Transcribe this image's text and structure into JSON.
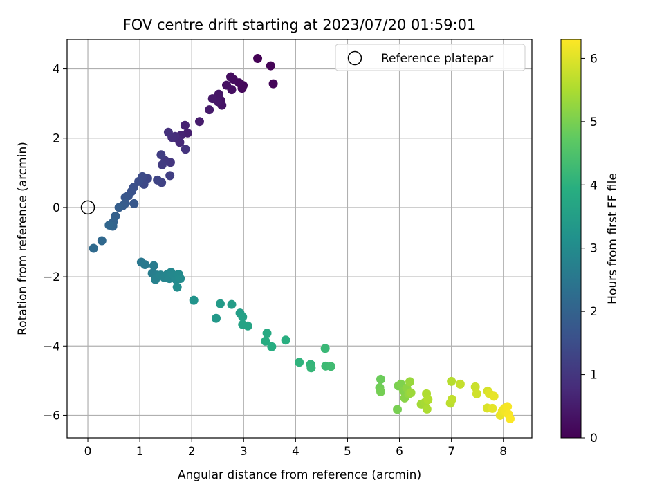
{
  "chart_data": {
    "type": "scatter",
    "title": "FOV centre drift starting at 2023/07/20 01:59:01",
    "xlabel": "Angular distance from reference (arcmin)",
    "ylabel": "Rotation from reference (arcmin)",
    "xlim": [
      -0.4,
      8.55
    ],
    "ylim": [
      -6.65,
      4.85
    ],
    "xticks": [
      0,
      1,
      2,
      3,
      4,
      5,
      6,
      7,
      8
    ],
    "yticks": [
      -6,
      -4,
      -2,
      0,
      2,
      4
    ],
    "grid": true,
    "legend": {
      "position": "upper right",
      "entries": [
        "Reference platepar"
      ]
    },
    "reference_point": {
      "x": 0,
      "y": 0,
      "label": "Reference platepar"
    },
    "colorbar": {
      "label": "Hours from first FF file",
      "colormap": "viridis",
      "range": [
        0,
        6.3
      ],
      "ticks": [
        0,
        1,
        2,
        3,
        4,
        5,
        6
      ]
    },
    "series": [
      {
        "color_value": "hours",
        "points": [
          [
            3.27,
            4.3,
            0.02
          ],
          [
            3.52,
            4.09,
            0.05
          ],
          [
            3.57,
            3.57,
            0.08
          ],
          [
            2.99,
            3.52,
            0.11
          ],
          [
            2.97,
            3.44,
            0.14
          ],
          [
            2.91,
            3.6,
            0.17
          ],
          [
            2.8,
            3.7,
            0.2
          ],
          [
            2.75,
            3.77,
            0.23
          ],
          [
            2.77,
            3.4,
            0.26
          ],
          [
            2.67,
            3.53,
            0.29
          ],
          [
            2.56,
            3.09,
            0.32
          ],
          [
            2.58,
            2.95,
            0.35
          ],
          [
            2.52,
            3.27,
            0.38
          ],
          [
            2.5,
            3.06,
            0.41
          ],
          [
            2.4,
            3.14,
            0.44
          ],
          [
            2.34,
            2.82,
            0.47
          ],
          [
            2.15,
            2.48,
            0.5
          ],
          [
            1.92,
            2.15,
            0.55
          ],
          [
            1.87,
            2.37,
            0.6
          ],
          [
            1.79,
            2.08,
            0.65
          ],
          [
            1.73,
            1.98,
            0.7
          ],
          [
            1.77,
            1.88,
            0.75
          ],
          [
            1.68,
            2.05,
            0.8
          ],
          [
            1.62,
            2.02,
            0.85
          ],
          [
            1.55,
            2.17,
            0.9
          ],
          [
            1.88,
            1.68,
            0.95
          ],
          [
            1.59,
            1.3,
            1.0
          ],
          [
            1.49,
            1.35,
            1.05
          ],
          [
            1.43,
            1.23,
            1.1
          ],
          [
            1.41,
            1.52,
            1.15
          ],
          [
            1.58,
            0.92,
            1.2
          ],
          [
            1.42,
            0.72,
            1.25
          ],
          [
            1.34,
            0.79,
            1.3
          ],
          [
            1.15,
            0.84,
            1.35
          ],
          [
            1.08,
            0.67,
            1.4
          ],
          [
            1.05,
            0.89,
            1.45
          ],
          [
            0.98,
            0.75,
            1.5
          ],
          [
            0.88,
            0.58,
            1.55
          ],
          [
            0.84,
            0.46,
            1.6
          ],
          [
            0.78,
            0.34,
            1.65
          ],
          [
            0.72,
            0.29,
            1.7
          ],
          [
            0.89,
            0.11,
            1.75
          ],
          [
            0.72,
            0.12,
            1.8
          ],
          [
            0.67,
            0.05,
            1.85
          ],
          [
            0.6,
            0.0,
            1.9
          ],
          [
            0.53,
            -0.25,
            1.95
          ],
          [
            0.49,
            -0.42,
            2.0
          ],
          [
            0.48,
            -0.54,
            2.05
          ],
          [
            0.41,
            -0.51,
            2.1
          ],
          [
            0.27,
            -0.96,
            2.15
          ],
          [
            0.11,
            -1.18,
            2.2
          ],
          [
            1.03,
            -1.58,
            2.5
          ],
          [
            1.1,
            -1.65,
            2.55
          ],
          [
            1.27,
            -1.68,
            2.6
          ],
          [
            1.24,
            -1.9,
            2.65
          ],
          [
            1.33,
            -1.95,
            2.7
          ],
          [
            1.3,
            -2.08,
            2.75
          ],
          [
            1.4,
            -1.95,
            2.8
          ],
          [
            1.47,
            -2.02,
            2.82
          ],
          [
            1.53,
            -1.93,
            2.85
          ],
          [
            1.57,
            -2.05,
            2.88
          ],
          [
            1.6,
            -1.87,
            2.9
          ],
          [
            1.65,
            -1.95,
            2.93
          ],
          [
            1.7,
            -2.08,
            2.95
          ],
          [
            1.75,
            -1.93,
            2.98
          ],
          [
            1.78,
            -2.05,
            3.0
          ],
          [
            1.72,
            -2.3,
            3.05
          ],
          [
            2.04,
            -2.68,
            3.2
          ],
          [
            2.47,
            -3.2,
            3.35
          ],
          [
            2.55,
            -2.78,
            3.4
          ],
          [
            2.77,
            -2.8,
            3.45
          ],
          [
            2.93,
            -3.05,
            3.5
          ],
          [
            2.98,
            -3.16,
            3.55
          ],
          [
            2.98,
            -3.38,
            3.6
          ],
          [
            3.08,
            -3.42,
            3.65
          ],
          [
            3.45,
            -3.63,
            3.8
          ],
          [
            3.42,
            -3.86,
            3.85
          ],
          [
            3.54,
            -4.02,
            3.9
          ],
          [
            3.81,
            -3.83,
            3.95
          ],
          [
            4.07,
            -4.47,
            4.05
          ],
          [
            4.29,
            -4.53,
            4.1
          ],
          [
            4.3,
            -4.63,
            4.15
          ],
          [
            4.57,
            -4.07,
            4.2
          ],
          [
            4.58,
            -4.58,
            4.25
          ],
          [
            4.68,
            -4.59,
            4.3
          ],
          [
            5.64,
            -4.96,
            4.85
          ],
          [
            5.62,
            -5.2,
            4.9
          ],
          [
            5.64,
            -5.32,
            4.95
          ],
          [
            5.96,
            -5.83,
            4.98
          ],
          [
            5.98,
            -5.15,
            5.0
          ],
          [
            6.03,
            -5.1,
            5.05
          ],
          [
            6.08,
            -5.3,
            5.1
          ],
          [
            6.1,
            -5.5,
            5.15
          ],
          [
            6.14,
            -5.22,
            5.2
          ],
          [
            6.18,
            -5.38,
            5.25
          ],
          [
            6.2,
            -5.03,
            5.3
          ],
          [
            6.22,
            -5.35,
            5.35
          ],
          [
            6.42,
            -5.68,
            5.4
          ],
          [
            6.49,
            -5.63,
            5.45
          ],
          [
            6.53,
            -5.82,
            5.5
          ],
          [
            6.52,
            -5.38,
            5.52
          ],
          [
            6.55,
            -5.55,
            5.55
          ],
          [
            7.0,
            -5.02,
            5.6
          ],
          [
            6.98,
            -5.65,
            5.65
          ],
          [
            7.01,
            -5.54,
            5.7
          ],
          [
            7.17,
            -5.1,
            5.75
          ],
          [
            7.46,
            -5.18,
            5.8
          ],
          [
            7.49,
            -5.38,
            5.85
          ],
          [
            7.7,
            -5.3,
            5.9
          ],
          [
            7.69,
            -5.79,
            5.95
          ],
          [
            7.73,
            -5.37,
            6.0
          ],
          [
            7.79,
            -5.8,
            6.05
          ],
          [
            7.82,
            -5.45,
            6.08
          ],
          [
            7.94,
            -6.0,
            6.1
          ],
          [
            7.98,
            -5.88,
            6.15
          ],
          [
            8.02,
            -5.8,
            6.18
          ],
          [
            8.05,
            -5.9,
            6.2
          ],
          [
            8.08,
            -5.75,
            6.23
          ],
          [
            8.1,
            -5.97,
            6.25
          ],
          [
            8.13,
            -6.1,
            6.28
          ]
        ]
      }
    ]
  }
}
